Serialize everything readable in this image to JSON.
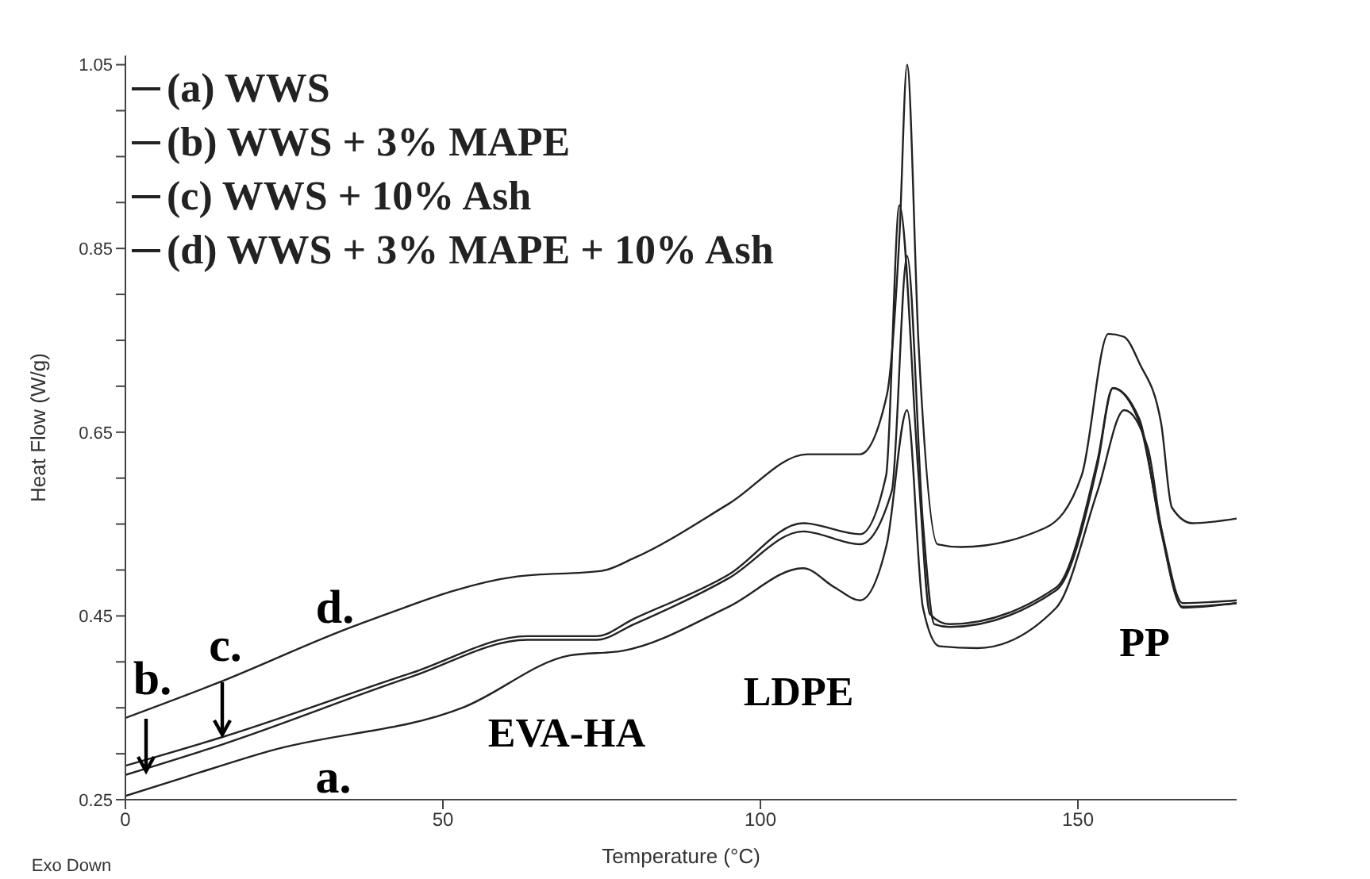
{
  "chart_data": {
    "type": "line",
    "xlabel": "Temperature (°C)",
    "ylabel": "Heat Flow (W/g)",
    "xlim": [
      0,
      175
    ],
    "xticks": [
      0,
      50,
      100,
      150
    ],
    "ylim": [
      0.25,
      1.06
    ],
    "yticks": [
      0.25,
      {
        "value": 0.3,
        "label": null
      },
      {
        "value": 0.35,
        "label": null
      },
      {
        "value": 0.4,
        "label": null
      },
      0.45,
      {
        "value": 0.5,
        "label": null
      },
      {
        "value": 0.55,
        "label": null
      },
      {
        "value": 0.6,
        "label": null
      },
      0.65,
      {
        "value": 0.7,
        "label": null
      },
      {
        "value": 0.75,
        "label": null
      },
      {
        "value": 0.8,
        "label": null
      },
      0.85,
      {
        "value": 0.9,
        "label": null
      },
      {
        "value": 0.95,
        "label": null
      },
      {
        "value": 1.0,
        "label": null
      },
      1.05
    ],
    "grid": false,
    "legend": "top left",
    "marker": "none",
    "line_style": "solid",
    "series": [
      {
        "name": "(a) WWS",
        "color": "#222222",
        "x": [
          0,
          9.6,
          22.7,
          53.4,
          70,
          78.3,
          95,
          106.7,
          111.7,
          115.7,
          119.9,
          123.1,
          125.6,
          128.2,
          134.2,
          146.6,
          153.1,
          157.3,
          161,
          163.1,
          166.5,
          175
        ],
        "values": [
          0.254,
          0.275,
          0.303,
          0.351,
          0.407,
          0.412,
          0.46,
          0.502,
          0.481,
          0.467,
          0.528,
          0.674,
          0.459,
          0.417,
          0.415,
          0.459,
          0.586,
          0.674,
          0.633,
          0.546,
          0.459,
          0.464
        ]
      },
      {
        "name": "(b) WWS + 3% MAPE",
        "color": "#222222",
        "x": [
          0,
          15.2,
          45.1,
          63.3,
          74.2,
          80.1,
          95,
          106.7,
          115.7,
          119.8,
          121.9,
          124.9,
          126.7,
          129.8,
          146.6,
          153.1,
          155.5,
          159.7,
          163.1,
          166.5,
          175
        ],
        "values": [
          0.287,
          0.318,
          0.388,
          0.428,
          0.428,
          0.447,
          0.495,
          0.551,
          0.539,
          0.603,
          0.897,
          0.603,
          0.452,
          0.441,
          0.481,
          0.62,
          0.698,
          0.66,
          0.546,
          0.464,
          0.467
        ]
      },
      {
        "name": "(c) WWS + 10% Ash",
        "color": "#222222",
        "x": [
          0,
          15.2,
          45.1,
          63.3,
          74.2,
          80.1,
          95,
          106.7,
          115.7,
          120.7,
          123.1,
          125.6,
          127.4,
          129.8,
          146.6,
          153.1,
          155.5,
          159.7,
          163.1,
          166.5,
          175
        ],
        "values": [
          0.277,
          0.31,
          0.384,
          0.424,
          0.424,
          0.441,
          0.491,
          0.542,
          0.528,
          0.586,
          0.842,
          0.551,
          0.441,
          0.438,
          0.478,
          0.615,
          0.698,
          0.664,
          0.542,
          0.46,
          0.464
        ]
      },
      {
        "name": "(d) WWS + 3% MAPE + 10% Ash",
        "color": "#222222",
        "x": [
          0,
          14.5,
          36.8,
          61.7,
          75,
          80.1,
          95,
          107.4,
          115.7,
          119.9,
          121.9,
          123.1,
          124.9,
          127.9,
          131.6,
          144.9,
          150.6,
          154.8,
          157.2,
          159.7,
          163.1,
          164.8,
          168,
          175
        ],
        "values": [
          0.339,
          0.377,
          0.441,
          0.493,
          0.499,
          0.513,
          0.572,
          0.626,
          0.626,
          0.69,
          0.864,
          1.05,
          0.747,
          0.528,
          0.525,
          0.546,
          0.603,
          0.757,
          0.754,
          0.725,
          0.66,
          0.568,
          0.551,
          0.556
        ]
      }
    ],
    "annotations": [
      "a.",
      "b.",
      "c.",
      "d.",
      "EVA-HA",
      "LDPE",
      "PP",
      "Exo Down"
    ]
  }
}
